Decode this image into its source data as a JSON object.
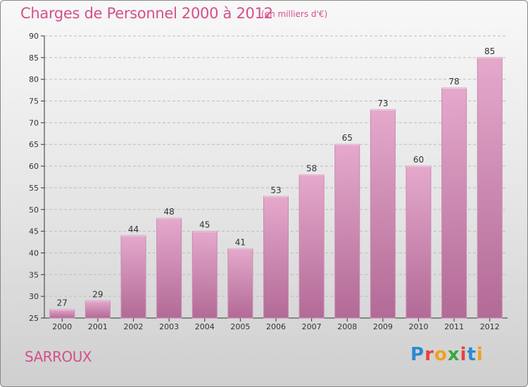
{
  "header": {
    "title": "Charges de Personnel 2000 à 2012",
    "unit": "(en milliers d'€)"
  },
  "footer": {
    "place": "SARROUX",
    "logo": "Proxiti",
    "logo_colors": [
      "#2a8ad4",
      "#e84040",
      "#f0a020",
      "#3aa83a",
      "#e84040",
      "#2a8ad4",
      "#f0a020"
    ]
  },
  "colors": {
    "bar_top": "#e5a9cc",
    "bar_bottom": "#b26a96",
    "title": "#d4508a",
    "grid": "#bdbdbd"
  },
  "chart_data": {
    "type": "bar",
    "title": "Charges de Personnel 2000 à 2012",
    "subtitle": "(en milliers d'€)",
    "categories": [
      "2000",
      "2001",
      "2002",
      "2003",
      "2004",
      "2005",
      "2006",
      "2007",
      "2008",
      "2009",
      "2010",
      "2011",
      "2012"
    ],
    "values": [
      27,
      29,
      44,
      48,
      45,
      41,
      53,
      58,
      65,
      73,
      60,
      78,
      85
    ],
    "ylim": [
      25,
      90
    ],
    "yticks": [
      25,
      30,
      35,
      40,
      45,
      50,
      55,
      60,
      65,
      70,
      75,
      80,
      85,
      90
    ],
    "grid": true,
    "xlabel": "",
    "ylabel": ""
  }
}
